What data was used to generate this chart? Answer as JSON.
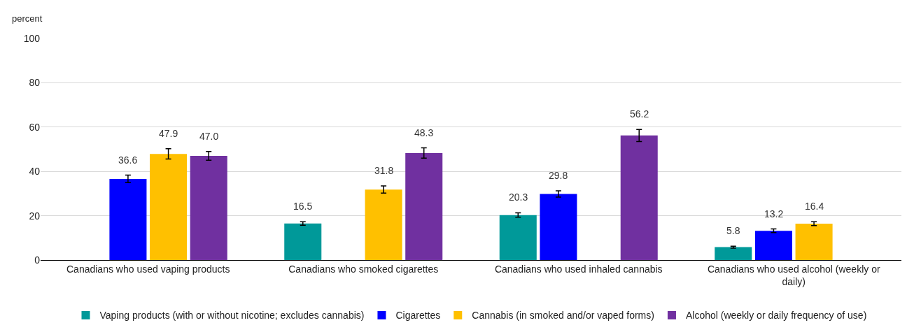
{
  "chart_data": {
    "type": "bar",
    "ylabel": "percent",
    "categories": [
      "Canadians who used vaping products",
      "Canadians who smoked cigarettes",
      "Canadians who used inhaled cannabis",
      "Canadians who used alcohol (weekly or daily)"
    ],
    "series": [
      {
        "name": "Vaping products (with or without nicotine; excludes cannabis)",
        "color": "#009999",
        "values": [
          null,
          16.5,
          20.3,
          5.8
        ],
        "errors": [
          null,
          0.8,
          1.0,
          0.4
        ],
        "value_labels": [
          null,
          "16.5",
          "20.3",
          "5.8"
        ]
      },
      {
        "name": "Cigarettes",
        "color": "#0000ff",
        "values": [
          36.6,
          null,
          29.8,
          13.2
        ],
        "errors": [
          1.7,
          null,
          1.4,
          0.8
        ],
        "value_labels": [
          "36.6",
          null,
          "29.8",
          "13.2"
        ]
      },
      {
        "name": "Cannabis (in smoked and/or vaped forms)",
        "color": "#ffc000",
        "values": [
          47.9,
          31.8,
          null,
          16.4
        ],
        "errors": [
          2.3,
          1.6,
          null,
          0.9
        ],
        "value_labels": [
          "47.9",
          "31.8",
          null,
          "16.4"
        ]
      },
      {
        "name": "Alcohol (weekly or daily frequency of use)",
        "color": "#7030a0",
        "values": [
          47.0,
          48.3,
          56.2,
          null
        ],
        "errors": [
          2.0,
          2.3,
          2.7,
          null
        ],
        "value_labels": [
          "47.0",
          "48.3",
          "56.2",
          null
        ]
      }
    ],
    "ylim": [
      0,
      100
    ],
    "yticks": [
      0,
      20,
      40,
      60,
      80,
      100
    ],
    "grid": "y",
    "legend": "bottom"
  }
}
